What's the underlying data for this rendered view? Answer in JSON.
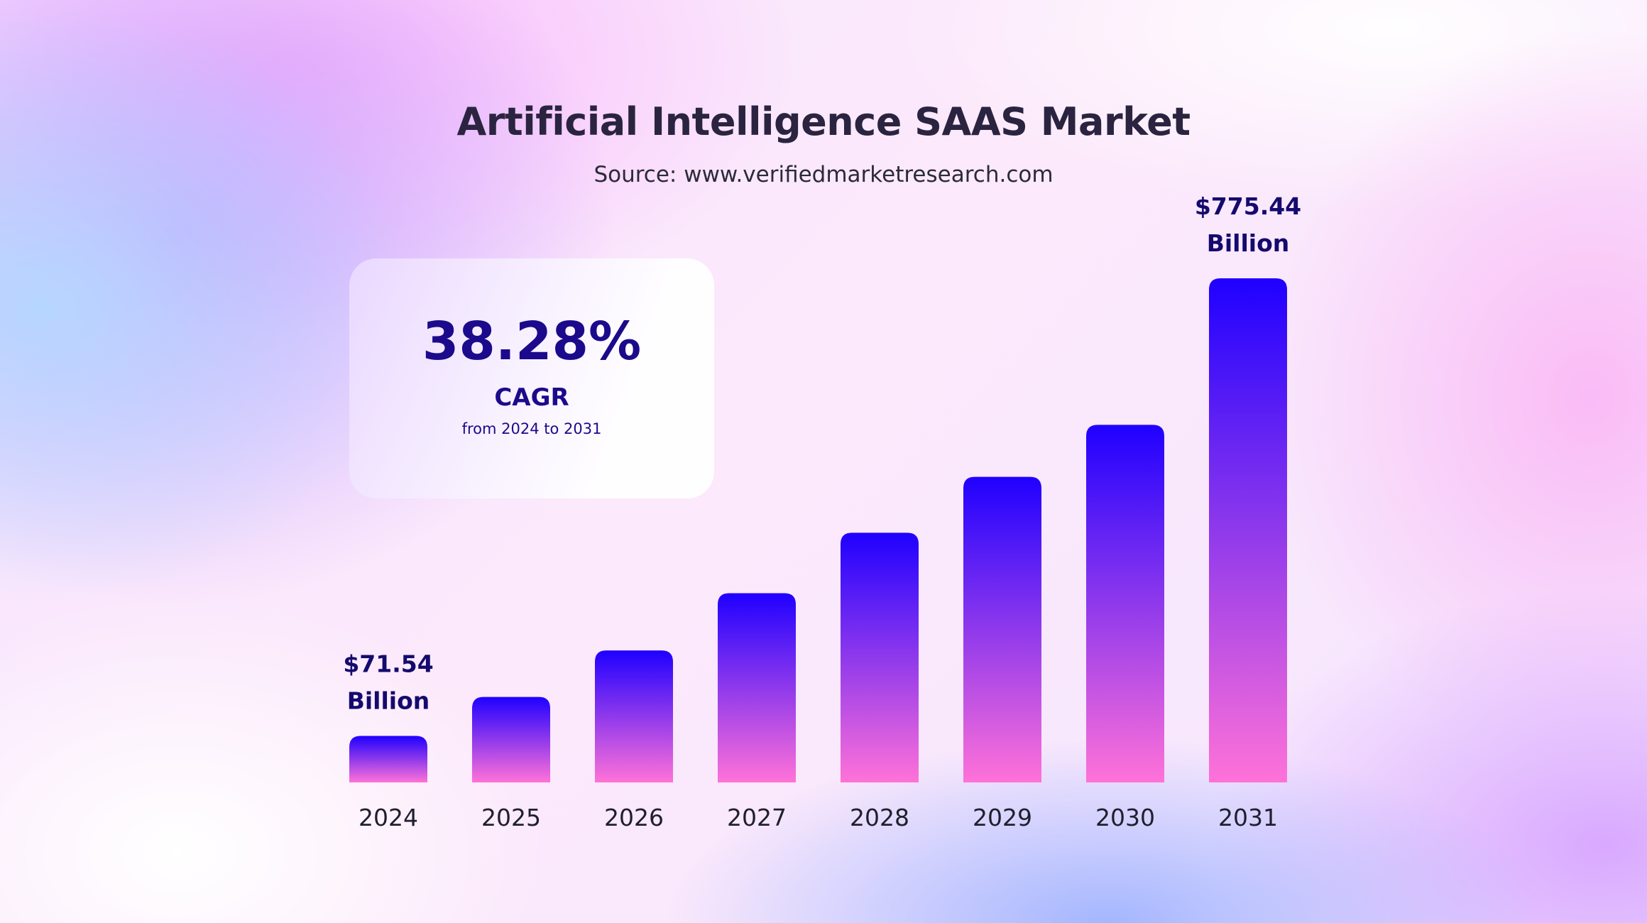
{
  "header": {
    "title": "Artificial Intelligence SAAS Market",
    "source": "Source: www.verifiedmarketresearch.com"
  },
  "cagr_card": {
    "value": "38.28%",
    "label": "CAGR",
    "range": "from 2024 to 2031"
  },
  "colors": {
    "bar_top": "#1f00ff",
    "bar_bottom": "#ff72d8",
    "label": "#140a6e",
    "title": "#2a2440"
  },
  "chart_data": {
    "type": "bar",
    "title": "Artificial Intelligence SAAS Market",
    "subtitle": "Source: www.verifiedmarketresearch.com",
    "categories": [
      "2024",
      "2025",
      "2026",
      "2027",
      "2028",
      "2029",
      "2030",
      "2031"
    ],
    "values": [
      71.54,
      131.5,
      203,
      291,
      384,
      470,
      550,
      775.44
    ],
    "unit": "Billion",
    "ylim": [
      0,
      800
    ],
    "grid": false,
    "data_labels": [
      {
        "category": "2024",
        "value_text": "$71.54",
        "unit_text": "Billion"
      },
      {
        "category": "2031",
        "value_text": "$775.44",
        "unit_text": "Billion"
      }
    ],
    "annotations": [
      {
        "text": "38.28%",
        "sub": "CAGR",
        "detail": "from 2024 to 2031"
      }
    ]
  }
}
